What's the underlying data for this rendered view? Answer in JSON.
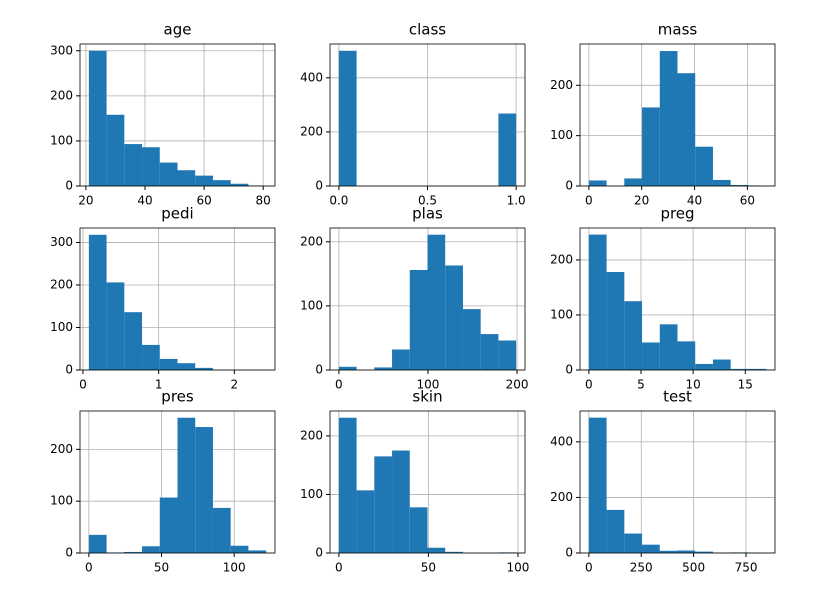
{
  "chart_data": [
    {
      "type": "histogram",
      "title": "age",
      "bins": [
        21,
        27,
        33,
        39,
        45,
        51,
        57,
        63,
        69,
        75,
        81
      ],
      "values": [
        300,
        158,
        93,
        86,
        52,
        35,
        23,
        13,
        5,
        1
      ],
      "xlim": [
        18,
        84
      ],
      "ylim": [
        0,
        315
      ],
      "xticks": [
        20,
        40,
        60,
        80
      ],
      "yticks": [
        0,
        100,
        200,
        300
      ],
      "color": "#1f77b4",
      "grid": true
    },
    {
      "type": "histogram",
      "title": "class",
      "bins": [
        0,
        0.1,
        0.2,
        0.3,
        0.4,
        0.5,
        0.6,
        0.7,
        0.8,
        0.9,
        1
      ],
      "values": [
        500,
        0,
        0,
        0,
        0,
        0,
        0,
        0,
        0,
        268
      ],
      "xlim": [
        -0.05,
        1.05
      ],
      "ylim": [
        0,
        525
      ],
      "xticks": [
        {
          "value": 0,
          "label": "0.0"
        },
        {
          "value": 0.5,
          "label": "0.5"
        },
        {
          "value": 1,
          "label": "1.0"
        }
      ],
      "yticks": [
        0,
        200,
        400
      ],
      "color": "#1f77b4",
      "grid": true
    },
    {
      "type": "histogram",
      "title": "mass",
      "bins": [
        0,
        6.71,
        13.42,
        20.13,
        26.84,
        33.55,
        40.26,
        46.97,
        53.68,
        60.39,
        67.1
      ],
      "values": [
        11,
        0,
        15,
        156,
        268,
        224,
        78,
        12,
        2,
        1
      ],
      "xlim": [
        -3.355,
        70.455
      ],
      "ylim": [
        0,
        282
      ],
      "xticks": [
        0,
        20,
        40,
        60
      ],
      "yticks": [
        0,
        100,
        200
      ],
      "color": "#1f77b4",
      "grid": true
    },
    {
      "type": "histogram",
      "title": "pedi",
      "bins": [
        0.078,
        0.3122,
        0.5464,
        0.7806,
        1.0148,
        1.249,
        1.4832,
        1.7174,
        1.9516,
        2.1858,
        2.42
      ],
      "values": [
        318,
        206,
        136,
        59,
        26,
        16,
        5,
        1,
        0,
        1
      ],
      "xlim": [
        -0.039,
        2.537
      ],
      "ylim": [
        0,
        334
      ],
      "xticks": [
        0,
        1,
        2
      ],
      "yticks": [
        0,
        100,
        200,
        300
      ],
      "color": "#1f77b4",
      "grid": true
    },
    {
      "type": "histogram",
      "title": "plas",
      "bins": [
        0,
        19.9,
        39.8,
        59.7,
        79.6,
        99.5,
        119.4,
        139.3,
        159.2,
        179.1,
        199
      ],
      "values": [
        5,
        0,
        4,
        32,
        156,
        211,
        163,
        95,
        56,
        46
      ],
      "xlim": [
        -9.95,
        208.95
      ],
      "ylim": [
        0,
        221.5
      ],
      "xticks": [
        0,
        100,
        200
      ],
      "yticks": [
        0,
        100,
        200
      ],
      "color": "#1f77b4",
      "grid": true
    },
    {
      "type": "histogram",
      "title": "preg",
      "bins": [
        0,
        1.7,
        3.4,
        5.1,
        6.8,
        8.5,
        10.2,
        11.9,
        13.6,
        15.3,
        17
      ],
      "values": [
        246,
        178,
        125,
        50,
        83,
        52,
        11,
        19,
        2,
        2
      ],
      "xlim": [
        -0.85,
        17.85
      ],
      "ylim": [
        0,
        258
      ],
      "xticks": [
        0,
        5,
        10,
        15
      ],
      "yticks": [
        0,
        100,
        200
      ],
      "color": "#1f77b4",
      "grid": true
    },
    {
      "type": "histogram",
      "title": "pres",
      "bins": [
        0,
        12.2,
        24.4,
        36.6,
        48.8,
        61,
        73.2,
        85.4,
        97.6,
        109.8,
        122
      ],
      "values": [
        35,
        1,
        2,
        13,
        107,
        261,
        243,
        87,
        14,
        5
      ],
      "xlim": [
        -6.1,
        128.1
      ],
      "ylim": [
        0,
        274
      ],
      "xticks": [
        0,
        50,
        100
      ],
      "yticks": [
        0,
        100,
        200
      ],
      "color": "#1f77b4",
      "grid": true
    },
    {
      "type": "histogram",
      "title": "skin",
      "bins": [
        0,
        9.9,
        19.8,
        29.7,
        39.6,
        49.5,
        59.4,
        69.3,
        79.2,
        89.1,
        99
      ],
      "values": [
        231,
        107,
        165,
        175,
        78,
        9,
        2,
        0,
        0,
        1
      ],
      "xlim": [
        -4.95,
        103.95
      ],
      "ylim": [
        0,
        242.5
      ],
      "xticks": [
        0,
        50,
        100
      ],
      "yticks": [
        0,
        100,
        200
      ],
      "color": "#1f77b4",
      "grid": true
    },
    {
      "type": "histogram",
      "title": "test",
      "bins": [
        0,
        84.6,
        169.2,
        253.8,
        338.4,
        423,
        507.6,
        592.2,
        676.8,
        761.4,
        846
      ],
      "values": [
        487,
        155,
        70,
        30,
        8,
        9,
        5,
        1,
        2,
        1
      ],
      "xlim": [
        -42.3,
        888.3
      ],
      "ylim": [
        0,
        511
      ],
      "xticks": [
        0,
        250,
        500,
        750
      ],
      "yticks": [
        0,
        200,
        400
      ],
      "color": "#1f77b4",
      "grid": true
    }
  ]
}
